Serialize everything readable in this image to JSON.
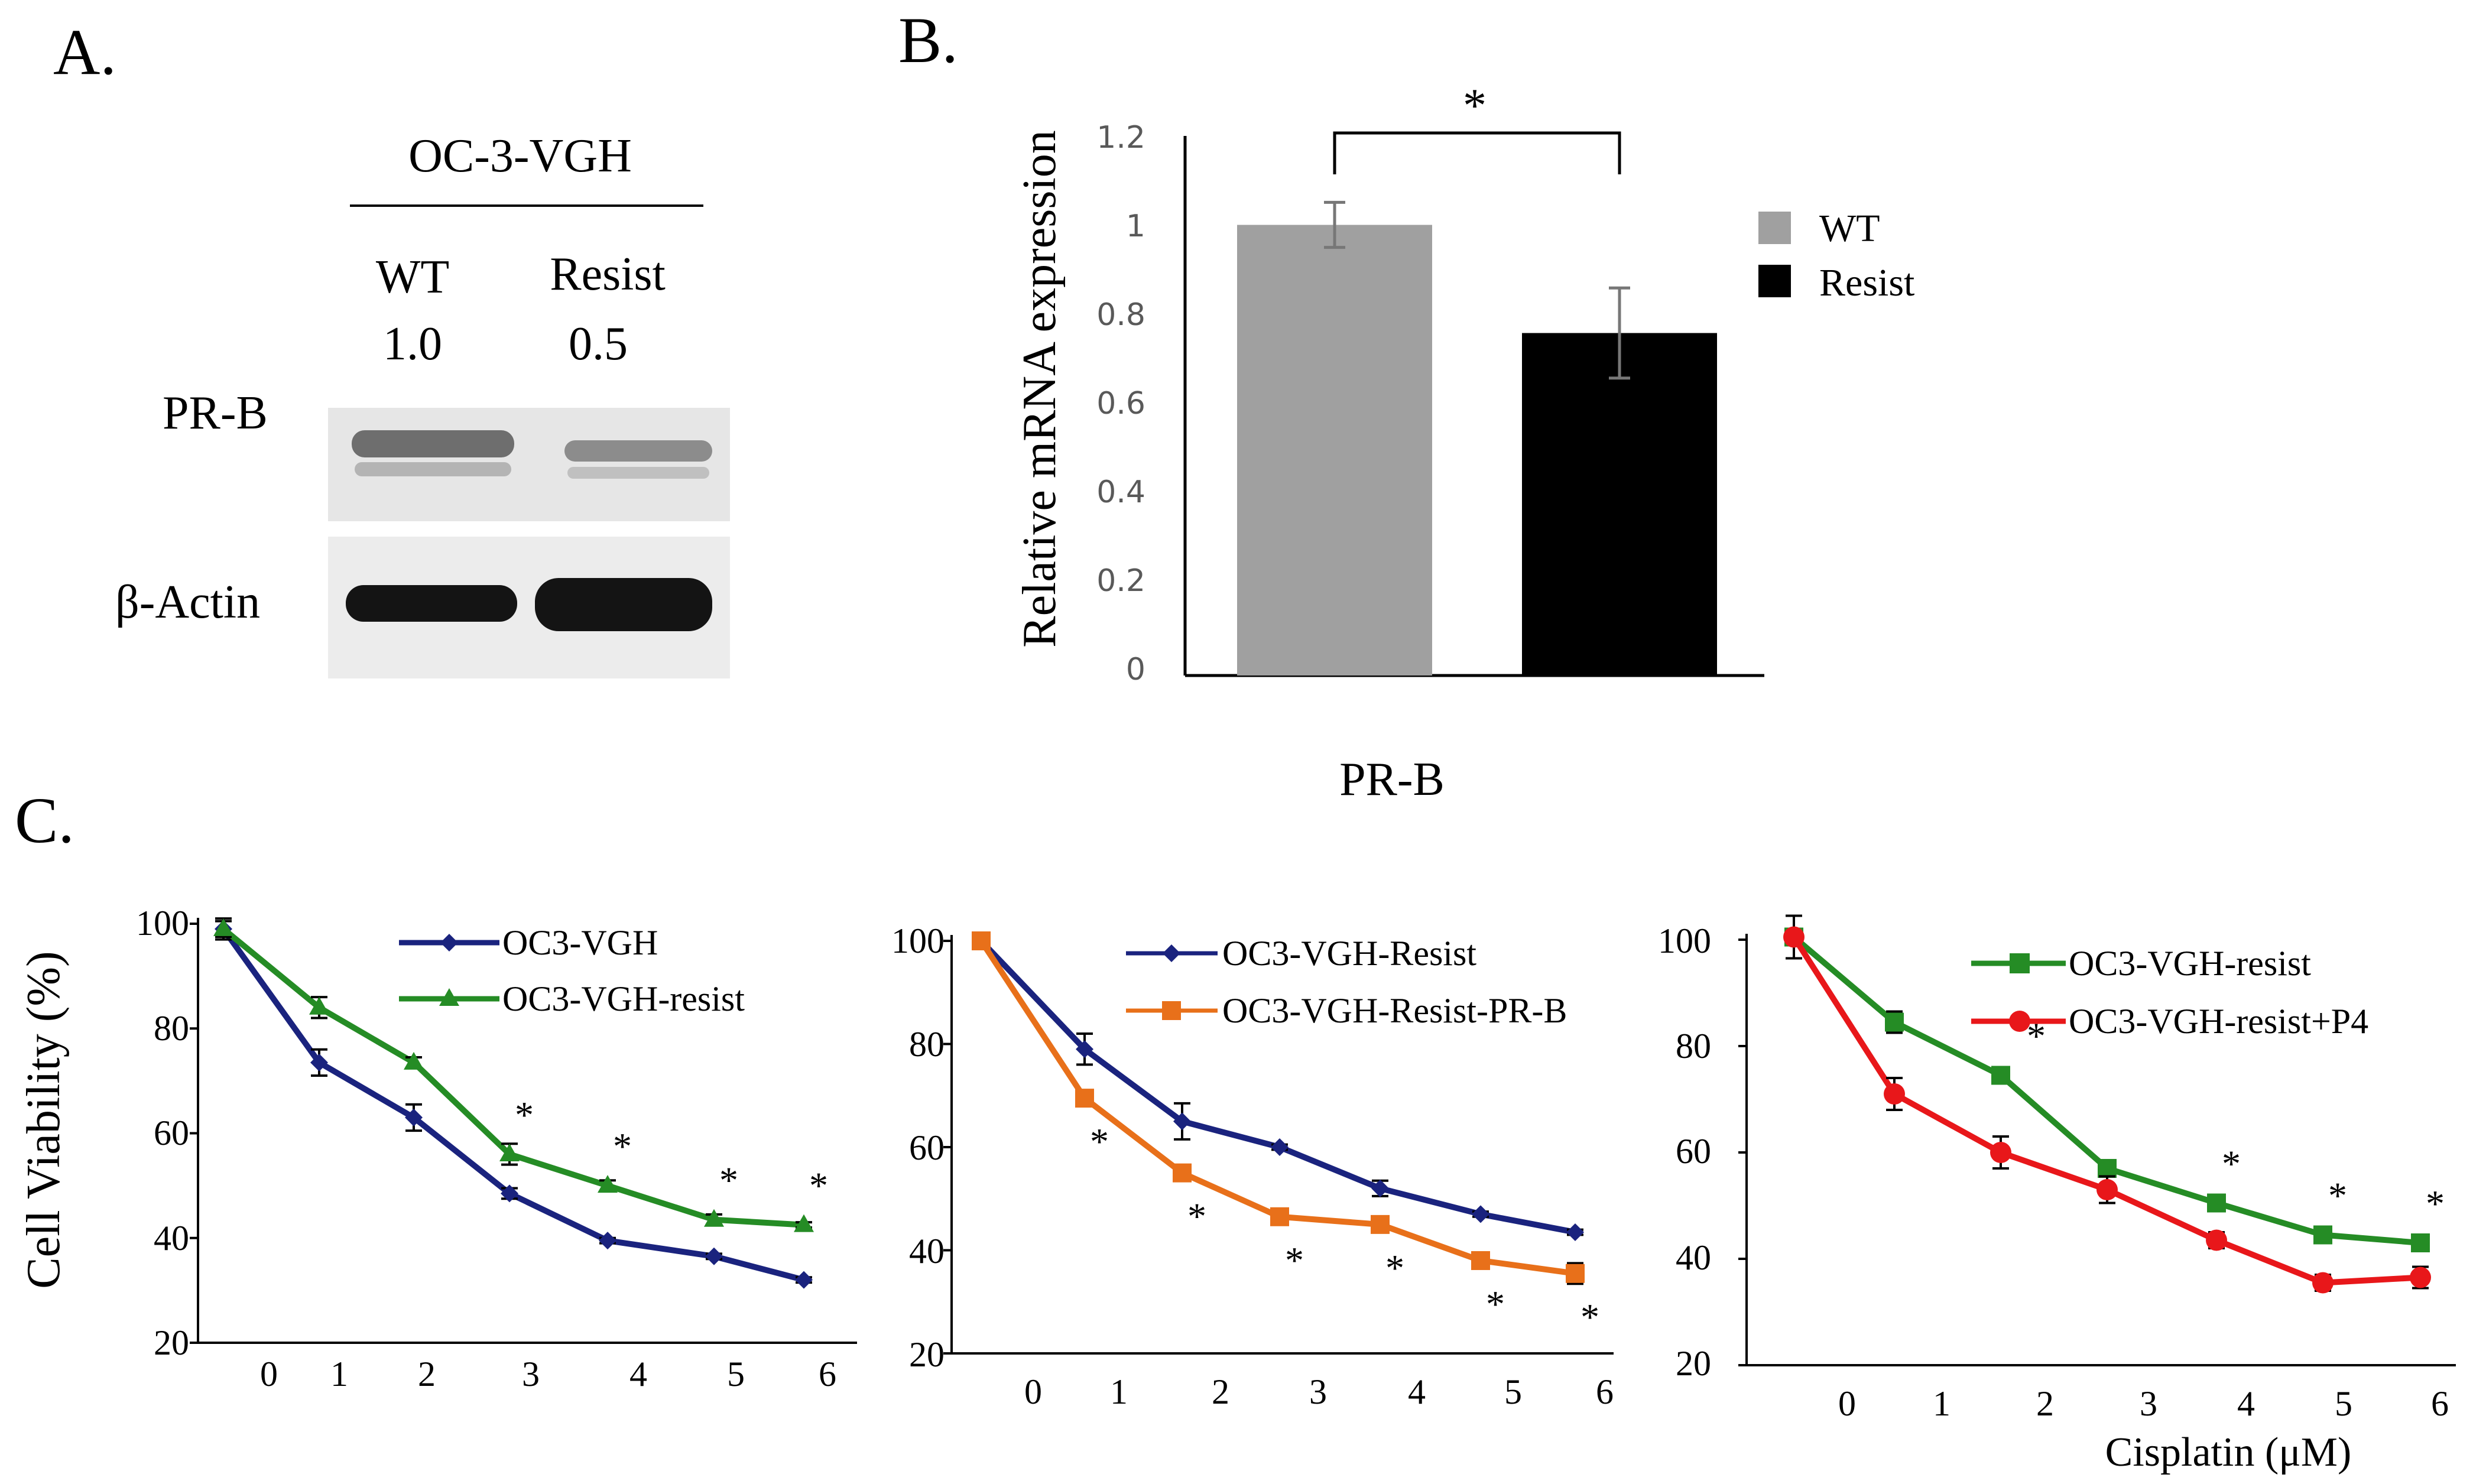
{
  "panel_labels": {
    "a": "A.",
    "b": "B.",
    "c": "C."
  },
  "blot": {
    "header": "OC-3-VGH",
    "lanes": [
      "WT",
      "Resist"
    ],
    "quant": [
      "1.0",
      "0.5"
    ],
    "rows": [
      "PR-B",
      "β-Actin"
    ]
  },
  "chart_data": [
    {
      "id": "B",
      "type": "bar",
      "categories": [
        "WT",
        "Resist"
      ],
      "values": [
        1.0,
        0.76
      ],
      "errors": [
        0.05,
        0.1
      ],
      "colors": [
        "#a0a0a0",
        "#000000"
      ],
      "ylabel": "Relative mRNA expression",
      "xlabel": "PR-B",
      "ylim": [
        0,
        1.2
      ],
      "yticks": [
        "0",
        "0.2",
        "0.4",
        "0.6",
        "0.8",
        "1",
        "1.2"
      ],
      "significance": "*",
      "legend": [
        "WT",
        "Resist"
      ],
      "legend_position": "right"
    },
    {
      "id": "C1",
      "type": "line",
      "x": [
        -0.5,
        0.5,
        1.5,
        2.5,
        3.5,
        4.5,
        5.5
      ],
      "xticks": [
        "0",
        "1",
        "2",
        "3",
        "4",
        "5",
        "6"
      ],
      "ylabel": "Cell Viability (%)",
      "ylim": [
        20,
        100
      ],
      "yticks": [
        "20",
        "40",
        "60",
        "80",
        "100"
      ],
      "series": [
        {
          "name": "OC3-VGH",
          "color": "#1a237e",
          "marker": "diamond",
          "values": [
            99,
            73.5,
            63,
            48.5,
            39.5,
            36.5,
            32
          ],
          "errors": [
            2,
            2.5,
            2.5,
            1,
            0.5,
            0.5,
            0.5
          ]
        },
        {
          "name": "OC3-VGH-resist",
          "color": "#258c25",
          "marker": "triangle",
          "values": [
            99,
            84,
            73.5,
            56,
            50,
            43.5,
            42.5
          ],
          "errors": [
            1.5,
            2,
            1,
            2,
            1,
            1,
            0.5
          ]
        }
      ],
      "significance": [
        "",
        "",
        "",
        "*",
        "*",
        "*",
        "*"
      ],
      "legend_position": "top-right"
    },
    {
      "id": "C2",
      "type": "line",
      "x": [
        -0.5,
        0.5,
        1.5,
        2.5,
        3.5,
        4.5,
        5.5
      ],
      "xticks": [
        "0",
        "1",
        "2",
        "3",
        "4",
        "5",
        "6"
      ],
      "ylim": [
        20,
        100
      ],
      "yticks": [
        "20",
        "40",
        "60",
        "80",
        "100"
      ],
      "series": [
        {
          "name": "OC3-VGH-Resist",
          "color": "#1a237e",
          "marker": "diamond",
          "values": [
            100,
            79,
            65,
            60,
            52,
            47,
            43.5
          ],
          "errors": [
            1,
            3,
            3.5,
            0.5,
            1.5,
            0.5,
            0.5
          ]
        },
        {
          "name": "OC3-VGH-Resist-PR-B",
          "color": "#e8701a",
          "marker": "square",
          "values": [
            100,
            69.5,
            55,
            46.5,
            45,
            38,
            35.5
          ],
          "errors": [
            1,
            1.5,
            1,
            1,
            1.5,
            1,
            2
          ]
        }
      ],
      "significance": [
        "",
        "*",
        "*",
        "*",
        "*",
        "*",
        "*"
      ],
      "legend_position": "top-right"
    },
    {
      "id": "C3",
      "type": "line",
      "x": [
        -0.5,
        0.5,
        1.5,
        2.5,
        3.5,
        4.5,
        5.5
      ],
      "xticks": [
        "0",
        "1",
        "2",
        "3",
        "4",
        "5",
        "6"
      ],
      "xlabel": "Cisplatin (μM)",
      "ylim": [
        20,
        100
      ],
      "yticks": [
        "20",
        "40",
        "60",
        "80",
        "100"
      ],
      "series": [
        {
          "name": "OC3-VGH-resist",
          "color": "#258c25",
          "marker": "square",
          "values": [
            100.5,
            84.5,
            74.5,
            57,
            50.5,
            44.5,
            43
          ],
          "errors": [
            1.5,
            2,
            1,
            1.5,
            0.5,
            1.5,
            1
          ]
        },
        {
          "name": "OC3-VGH-resist+P4",
          "color": "#e8171a",
          "marker": "circle",
          "values": [
            100.5,
            71,
            60,
            53,
            43.5,
            35.5,
            36.5
          ],
          "errors": [
            4,
            3,
            3,
            2.5,
            1.5,
            1.5,
            2
          ]
        }
      ],
      "significance": [
        "",
        "",
        "*",
        "",
        "*",
        "*",
        "*"
      ],
      "legend_position": "top-right"
    }
  ]
}
